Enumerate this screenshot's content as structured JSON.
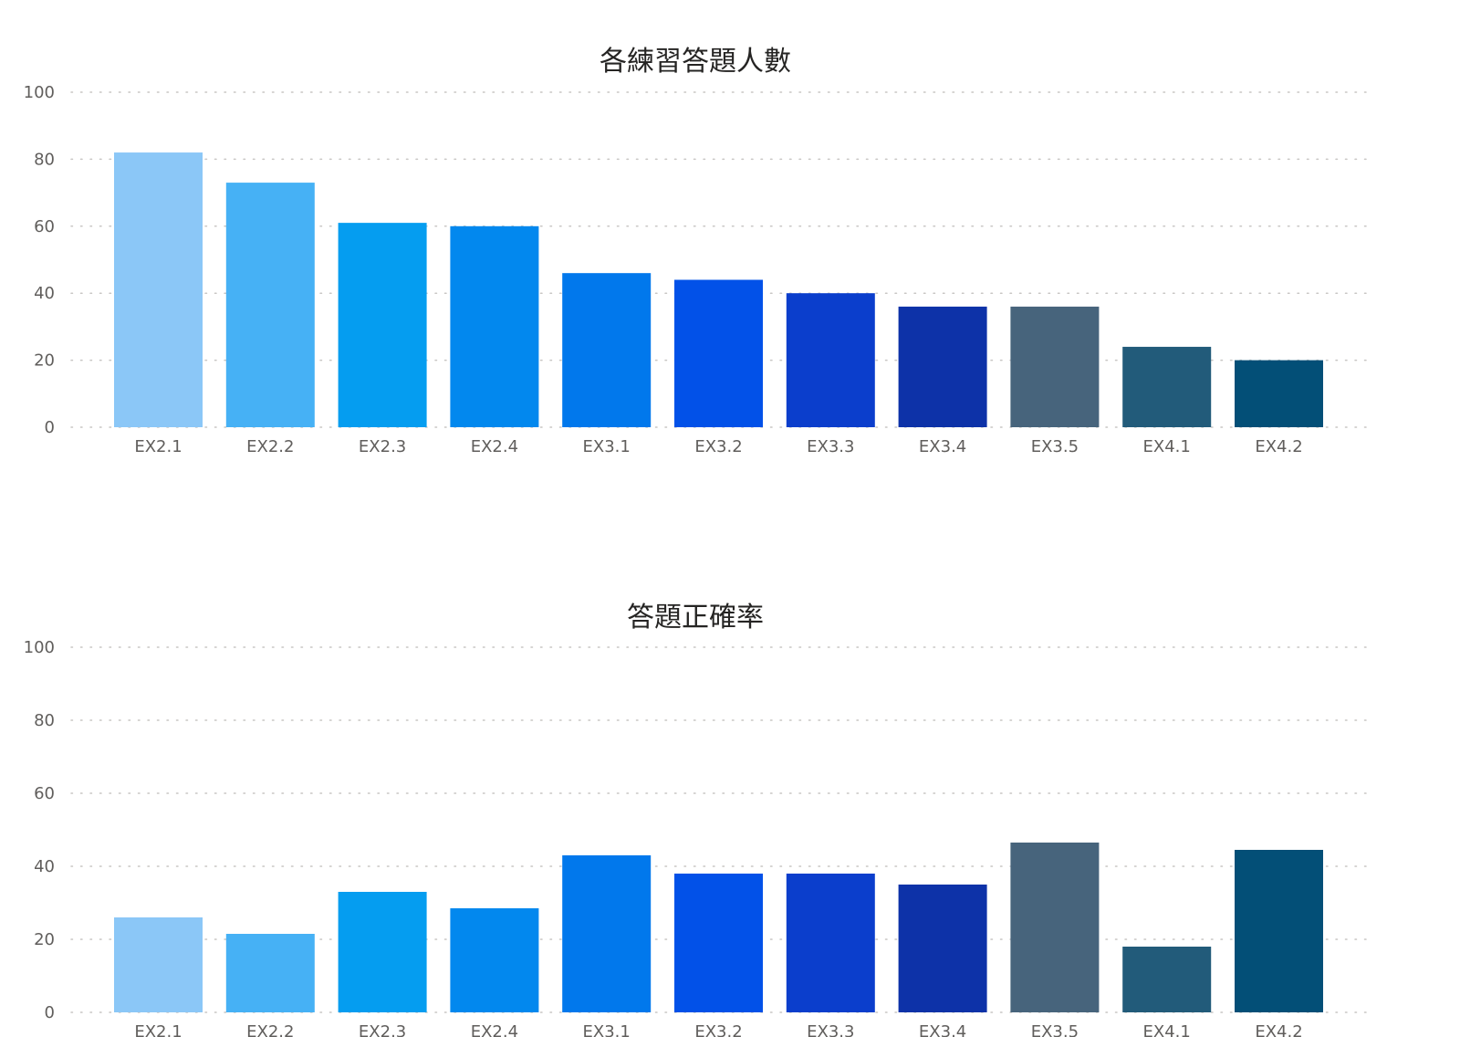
{
  "chart_data": [
    {
      "type": "bar",
      "title": "各練習答題人數",
      "categories": [
        "EX2.1",
        "EX2.2",
        "EX2.3",
        "EX2.4",
        "EX3.1",
        "EX3.2",
        "EX3.3",
        "EX3.4",
        "EX3.5",
        "EX4.1",
        "EX4.2"
      ],
      "values": [
        82,
        73,
        61,
        60,
        46,
        44,
        40,
        36,
        36,
        24,
        20
      ],
      "ylim": [
        0,
        100
      ],
      "yticks": [
        0,
        20,
        40,
        60,
        80,
        100
      ],
      "grid": true,
      "colors": [
        "#8bc7f7",
        "#46b1f5",
        "#059df0",
        "#0288ee",
        "#0178ec",
        "#0251e8",
        "#0b3ecc",
        "#0d32a8",
        "#47647c",
        "#225b7a",
        "#034f77"
      ]
    },
    {
      "type": "bar",
      "title": "答題正確率",
      "categories": [
        "EX2.1",
        "EX2.2",
        "EX2.3",
        "EX2.4",
        "EX3.1",
        "EX3.2",
        "EX3.3",
        "EX3.4",
        "EX3.5",
        "EX4.1",
        "EX4.2"
      ],
      "values": [
        26,
        21.5,
        33,
        28.5,
        43,
        38,
        38,
        35,
        46.5,
        18,
        44.5
      ],
      "ylim": [
        0,
        100
      ],
      "yticks": [
        0,
        20,
        40,
        60,
        80,
        100
      ],
      "grid": true,
      "colors": [
        "#8bc7f7",
        "#46b1f5",
        "#059df0",
        "#0288ee",
        "#0178ec",
        "#0251e8",
        "#0b3ecc",
        "#0d32a8",
        "#47647c",
        "#225b7a",
        "#034f77"
      ]
    }
  ]
}
